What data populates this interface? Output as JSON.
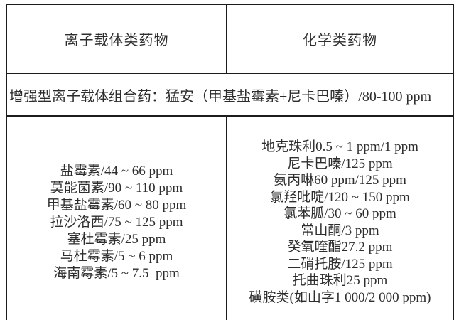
{
  "table": {
    "headers": {
      "ionophore": "离子载体类药物",
      "chemical": "化学类药物"
    },
    "combo_row": "增强型离子载体组合药：猛安（甲基盐霉素+尼卡巴嗪）/80-100 ppm",
    "ionophore_drugs": [
      "盐霉素/44 ~ 66 ppm",
      "莫能菌素/90 ~ 110 ppm",
      "甲基盐霉素/60 ~ 80 ppm",
      "拉沙洛西/75 ~ 125 ppm",
      "塞杜霉素/25 ppm",
      "马杜霉素/5 ~ 6 ppm",
      "海南霉素/5 ~ 7.5  ppm"
    ],
    "chemical_drugs": [
      "地克珠利0.5 ~ 1 ppm/1 ppm",
      "尼卡巴嗪/125 ppm",
      "氨丙啉60 ppm/125 ppm",
      "氯羟吡啶/120 ~ 150 ppm",
      "氯苯胍/30 ~ 60 ppm",
      "常山酮/3 ppm",
      "癸氧喹酯27.2 ppm",
      "二硝托胺/125 ppm",
      "托曲珠利25 ppm",
      "磺胺类(如山字1 000/2 000 ppm)"
    ]
  },
  "colors": {
    "border": "#1c1c1c",
    "text": "#2d2d2d",
    "background": "#ffffff"
  }
}
